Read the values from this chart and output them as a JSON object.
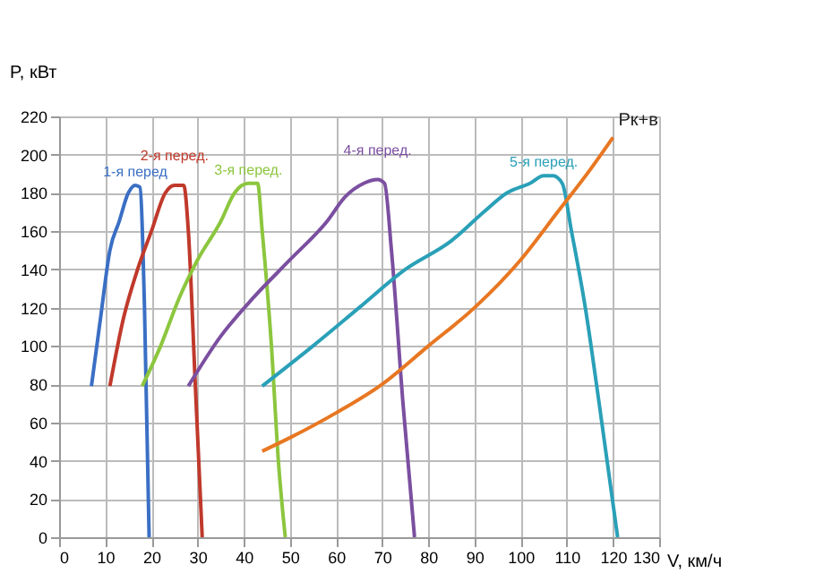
{
  "chart_data": {
    "type": "line",
    "xlabel": "V, км/ч",
    "ylabel": "P, кВт",
    "xlim": [
      0,
      130
    ],
    "xticks": [
      0,
      10,
      20,
      30,
      40,
      50,
      60,
      70,
      80,
      90,
      100,
      110,
      120,
      130
    ],
    "ylim": [
      0,
      220
    ],
    "yticks": [
      0,
      20,
      40,
      60,
      80,
      100,
      120,
      140,
      160,
      180,
      200,
      220
    ],
    "grid": true,
    "legend": false,
    "marker": "none",
    "line_style": "solid",
    "series": [
      {
        "name": "1-я перед",
        "color": "#3a6fc4",
        "x": [
          7,
          9,
          11,
          13,
          15,
          16.5,
          17.5,
          18.5,
          19.5
        ],
        "values": [
          79,
          115,
          150,
          165,
          180,
          184,
          183,
          120,
          0
        ]
      },
      {
        "name": "2-я перед.",
        "color": "#c0392b",
        "x": [
          11,
          14,
          17,
          20,
          23,
          25,
          27,
          28,
          29.5,
          31
        ],
        "values": [
          79,
          115,
          140,
          160,
          180,
          184,
          184,
          160,
          80,
          0
        ]
      },
      {
        "name": "3-я перед.",
        "color": "#8cc63e",
        "x": [
          18,
          22,
          26,
          30,
          35,
          38,
          41,
          43,
          44,
          46,
          47.5,
          49
        ],
        "values": [
          79,
          100,
          125,
          145,
          165,
          180,
          185,
          185,
          160,
          100,
          40,
          0
        ]
      },
      {
        "name": "4-я перед.",
        "color": "#7b4fa0",
        "x": [
          28,
          35,
          42,
          50,
          58,
          62,
          66,
          69,
          70.5,
          72,
          74.5,
          77
        ],
        "values": [
          79,
          105,
          125,
          145,
          165,
          178,
          185,
          187,
          185,
          150,
          70,
          0
        ]
      },
      {
        "name": "5-я перед.",
        "color": "#2aa0b8",
        "x": [
          44,
          55,
          65,
          75,
          85,
          92,
          97,
          102,
          105,
          107,
          109,
          111,
          114,
          117,
          121
        ],
        "values": [
          79,
          100,
          120,
          140,
          155,
          170,
          180,
          185,
          189,
          189,
          185,
          160,
          120,
          70,
          0
        ]
      },
      {
        "name": "Pк+в",
        "color": "#e87722",
        "x": [
          44,
          50,
          60,
          70,
          80,
          90,
          100,
          108,
          115,
          120
        ],
        "values": [
          45,
          52,
          65,
          80,
          100,
          120,
          145,
          170,
          192,
          209
        ]
      }
    ]
  }
}
